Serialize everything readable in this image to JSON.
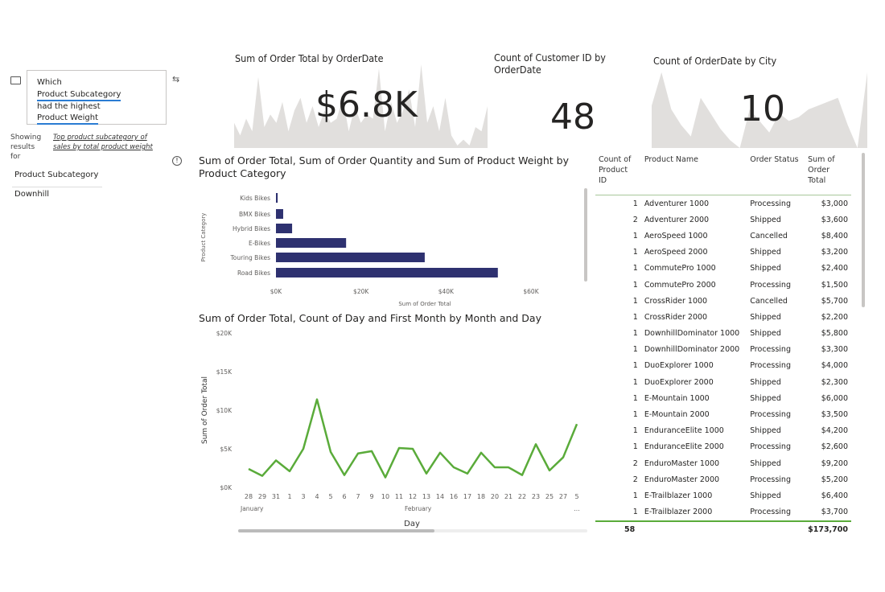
{
  "qa": {
    "question_parts": [
      "Which",
      "Product Subcategory",
      "had the highest",
      "Product Weight"
    ],
    "showing_label": "Showing results for",
    "showing_link": "Top product subcategory of sales by total product weight",
    "result_header": "Product Subcategory",
    "result_value": "Downhill"
  },
  "kpis": [
    {
      "title": "Sum of Order Total by OrderDate",
      "value": "$6.8K"
    },
    {
      "title": "Count of Customer ID by OrderDate",
      "value": "48"
    },
    {
      "title": "Count of OrderDate by City",
      "value": "10"
    }
  ],
  "chart_data": [
    {
      "type": "bar",
      "orientation": "horizontal",
      "title": "Sum of Order Total, Sum of Order Quantity and Sum of Product Weight by Product Category",
      "xlabel": "Sum of Order Total",
      "ylabel": "Product Category",
      "categories": [
        "Kids Bikes",
        "BMX Bikes",
        "Hybrid Bikes",
        "E-Bikes",
        "Touring Bikes",
        "Road Bikes"
      ],
      "values": [
        400,
        1700,
        3800,
        16500,
        35000,
        52200
      ],
      "xlim": [
        0,
        60000
      ],
      "xticks": [
        "$0K",
        "$20K",
        "$40K",
        "$60K"
      ],
      "color": "#2e3170"
    },
    {
      "type": "line",
      "title": "Sum of Order Total, Count of Day and First Month by Month and Day",
      "xlabel": "Day",
      "ylabel": "Sum of Order Total",
      "categories": [
        "28",
        "29",
        "31",
        "1",
        "3",
        "4",
        "5",
        "6",
        "7",
        "9",
        "10",
        "11",
        "12",
        "13",
        "14",
        "16",
        "17",
        "18",
        "20",
        "21",
        "22",
        "23",
        "25",
        "27",
        "5"
      ],
      "month_labels": [
        {
          "label": "January",
          "at": 0
        },
        {
          "label": "February",
          "at": 12
        },
        {
          "label": "...",
          "at": 24
        }
      ],
      "values": [
        2400,
        1500,
        3500,
        2100,
        5000,
        11400,
        4600,
        1600,
        4400,
        4700,
        1300,
        5100,
        5000,
        1800,
        4500,
        2600,
        1800,
        4500,
        2600,
        2600,
        1600,
        5600,
        2200,
        3900,
        8200
      ],
      "ylim": [
        0,
        20000
      ],
      "yticks": [
        "$0K",
        "$5K",
        "$10K",
        "$15K",
        "$20K"
      ],
      "color": "#5aab3a"
    }
  ],
  "table": {
    "headers": [
      "Count of Product ID",
      "Product Name",
      "Order Status",
      "Sum of Order Total"
    ],
    "rows": [
      [
        "1",
        "Adventurer 1000",
        "Processing",
        "$3,000"
      ],
      [
        "2",
        "Adventurer 2000",
        "Shipped",
        "$3,600"
      ],
      [
        "1",
        "AeroSpeed 1000",
        "Cancelled",
        "$8,400"
      ],
      [
        "1",
        "AeroSpeed 2000",
        "Shipped",
        "$3,200"
      ],
      [
        "1",
        "CommutePro 1000",
        "Shipped",
        "$2,400"
      ],
      [
        "1",
        "CommutePro 2000",
        "Processing",
        "$1,500"
      ],
      [
        "1",
        "CrossRider 1000",
        "Cancelled",
        "$5,700"
      ],
      [
        "1",
        "CrossRider 2000",
        "Shipped",
        "$2,200"
      ],
      [
        "1",
        "DownhillDominator 1000",
        "Shipped",
        "$5,800"
      ],
      [
        "1",
        "DownhillDominator 2000",
        "Processing",
        "$3,300"
      ],
      [
        "1",
        "DuoExplorer 1000",
        "Processing",
        "$4,000"
      ],
      [
        "1",
        "DuoExplorer 2000",
        "Shipped",
        "$2,300"
      ],
      [
        "1",
        "E-Mountain 1000",
        "Shipped",
        "$6,000"
      ],
      [
        "1",
        "E-Mountain 2000",
        "Processing",
        "$3,500"
      ],
      [
        "1",
        "EnduranceElite 1000",
        "Shipped",
        "$4,200"
      ],
      [
        "1",
        "EnduranceElite 2000",
        "Processing",
        "$2,600"
      ],
      [
        "2",
        "EnduroMaster 1000",
        "Shipped",
        "$9,200"
      ],
      [
        "2",
        "EnduroMaster 2000",
        "Processing",
        "$5,200"
      ],
      [
        "1",
        "E-Trailblazer 1000",
        "Shipped",
        "$6,400"
      ],
      [
        "1",
        "E-Trailblazer 2000",
        "Processing",
        "$3,700"
      ]
    ],
    "total": [
      "58",
      "",
      "",
      "$173,700"
    ]
  }
}
